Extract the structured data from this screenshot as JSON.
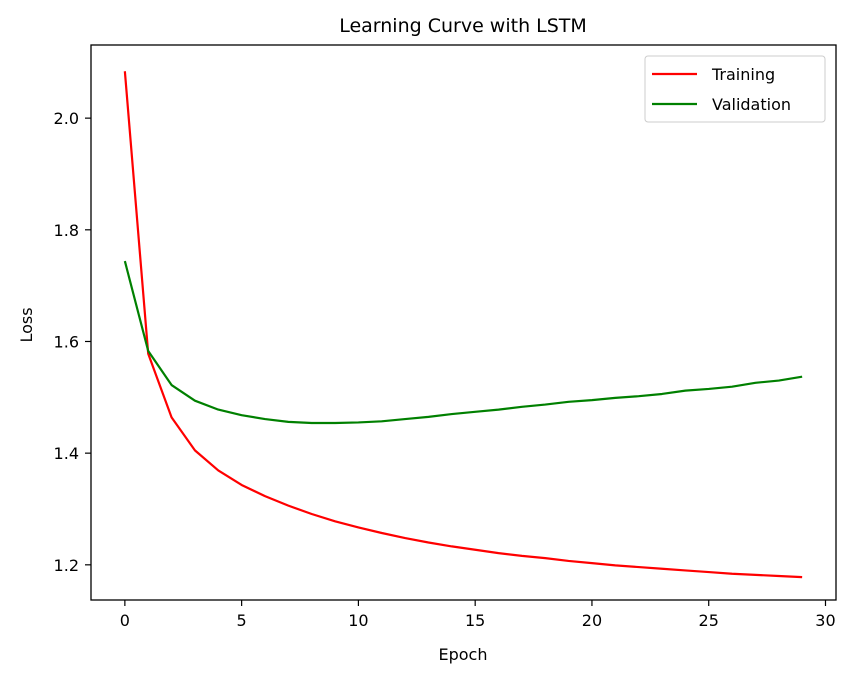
{
  "chart_data": {
    "type": "line",
    "title": "Learning Curve with LSTM",
    "xlabel": "Epoch",
    "ylabel": "Loss",
    "xlim": [
      -1.45,
      30.45
    ],
    "ylim": [
      1.137,
      2.131
    ],
    "xticks": [
      0,
      5,
      10,
      15,
      20,
      25,
      30
    ],
    "yticks": [
      1.2,
      1.4,
      1.6,
      1.8,
      2.0
    ],
    "xtick_labels": [
      "0",
      "5",
      "10",
      "15",
      "20",
      "25",
      "30"
    ],
    "ytick_labels": [
      "1.2",
      "1.4",
      "1.6",
      "1.8",
      "2.0"
    ],
    "grid": false,
    "legend_position": "top-right",
    "x": [
      0,
      1,
      2,
      3,
      4,
      5,
      6,
      7,
      8,
      9,
      10,
      11,
      12,
      13,
      14,
      15,
      16,
      17,
      18,
      19,
      20,
      21,
      22,
      23,
      24,
      25,
      26,
      27,
      28,
      29
    ],
    "series": [
      {
        "name": "Training",
        "color": "#ff0000",
        "values": [
          2.084,
          1.578,
          1.464,
          1.405,
          1.369,
          1.343,
          1.323,
          1.306,
          1.291,
          1.278,
          1.267,
          1.257,
          1.248,
          1.24,
          1.233,
          1.227,
          1.221,
          1.216,
          1.212,
          1.207,
          1.203,
          1.199,
          1.196,
          1.193,
          1.19,
          1.187,
          1.184,
          1.182,
          1.18,
          1.178
        ]
      },
      {
        "name": "Validation",
        "color": "#008000",
        "values": [
          1.744,
          1.583,
          1.522,
          1.494,
          1.478,
          1.468,
          1.461,
          1.456,
          1.454,
          1.454,
          1.455,
          1.457,
          1.461,
          1.465,
          1.47,
          1.474,
          1.478,
          1.483,
          1.487,
          1.492,
          1.495,
          1.499,
          1.502,
          1.506,
          1.512,
          1.515,
          1.519,
          1.526,
          1.53,
          1.537
        ]
      }
    ]
  }
}
